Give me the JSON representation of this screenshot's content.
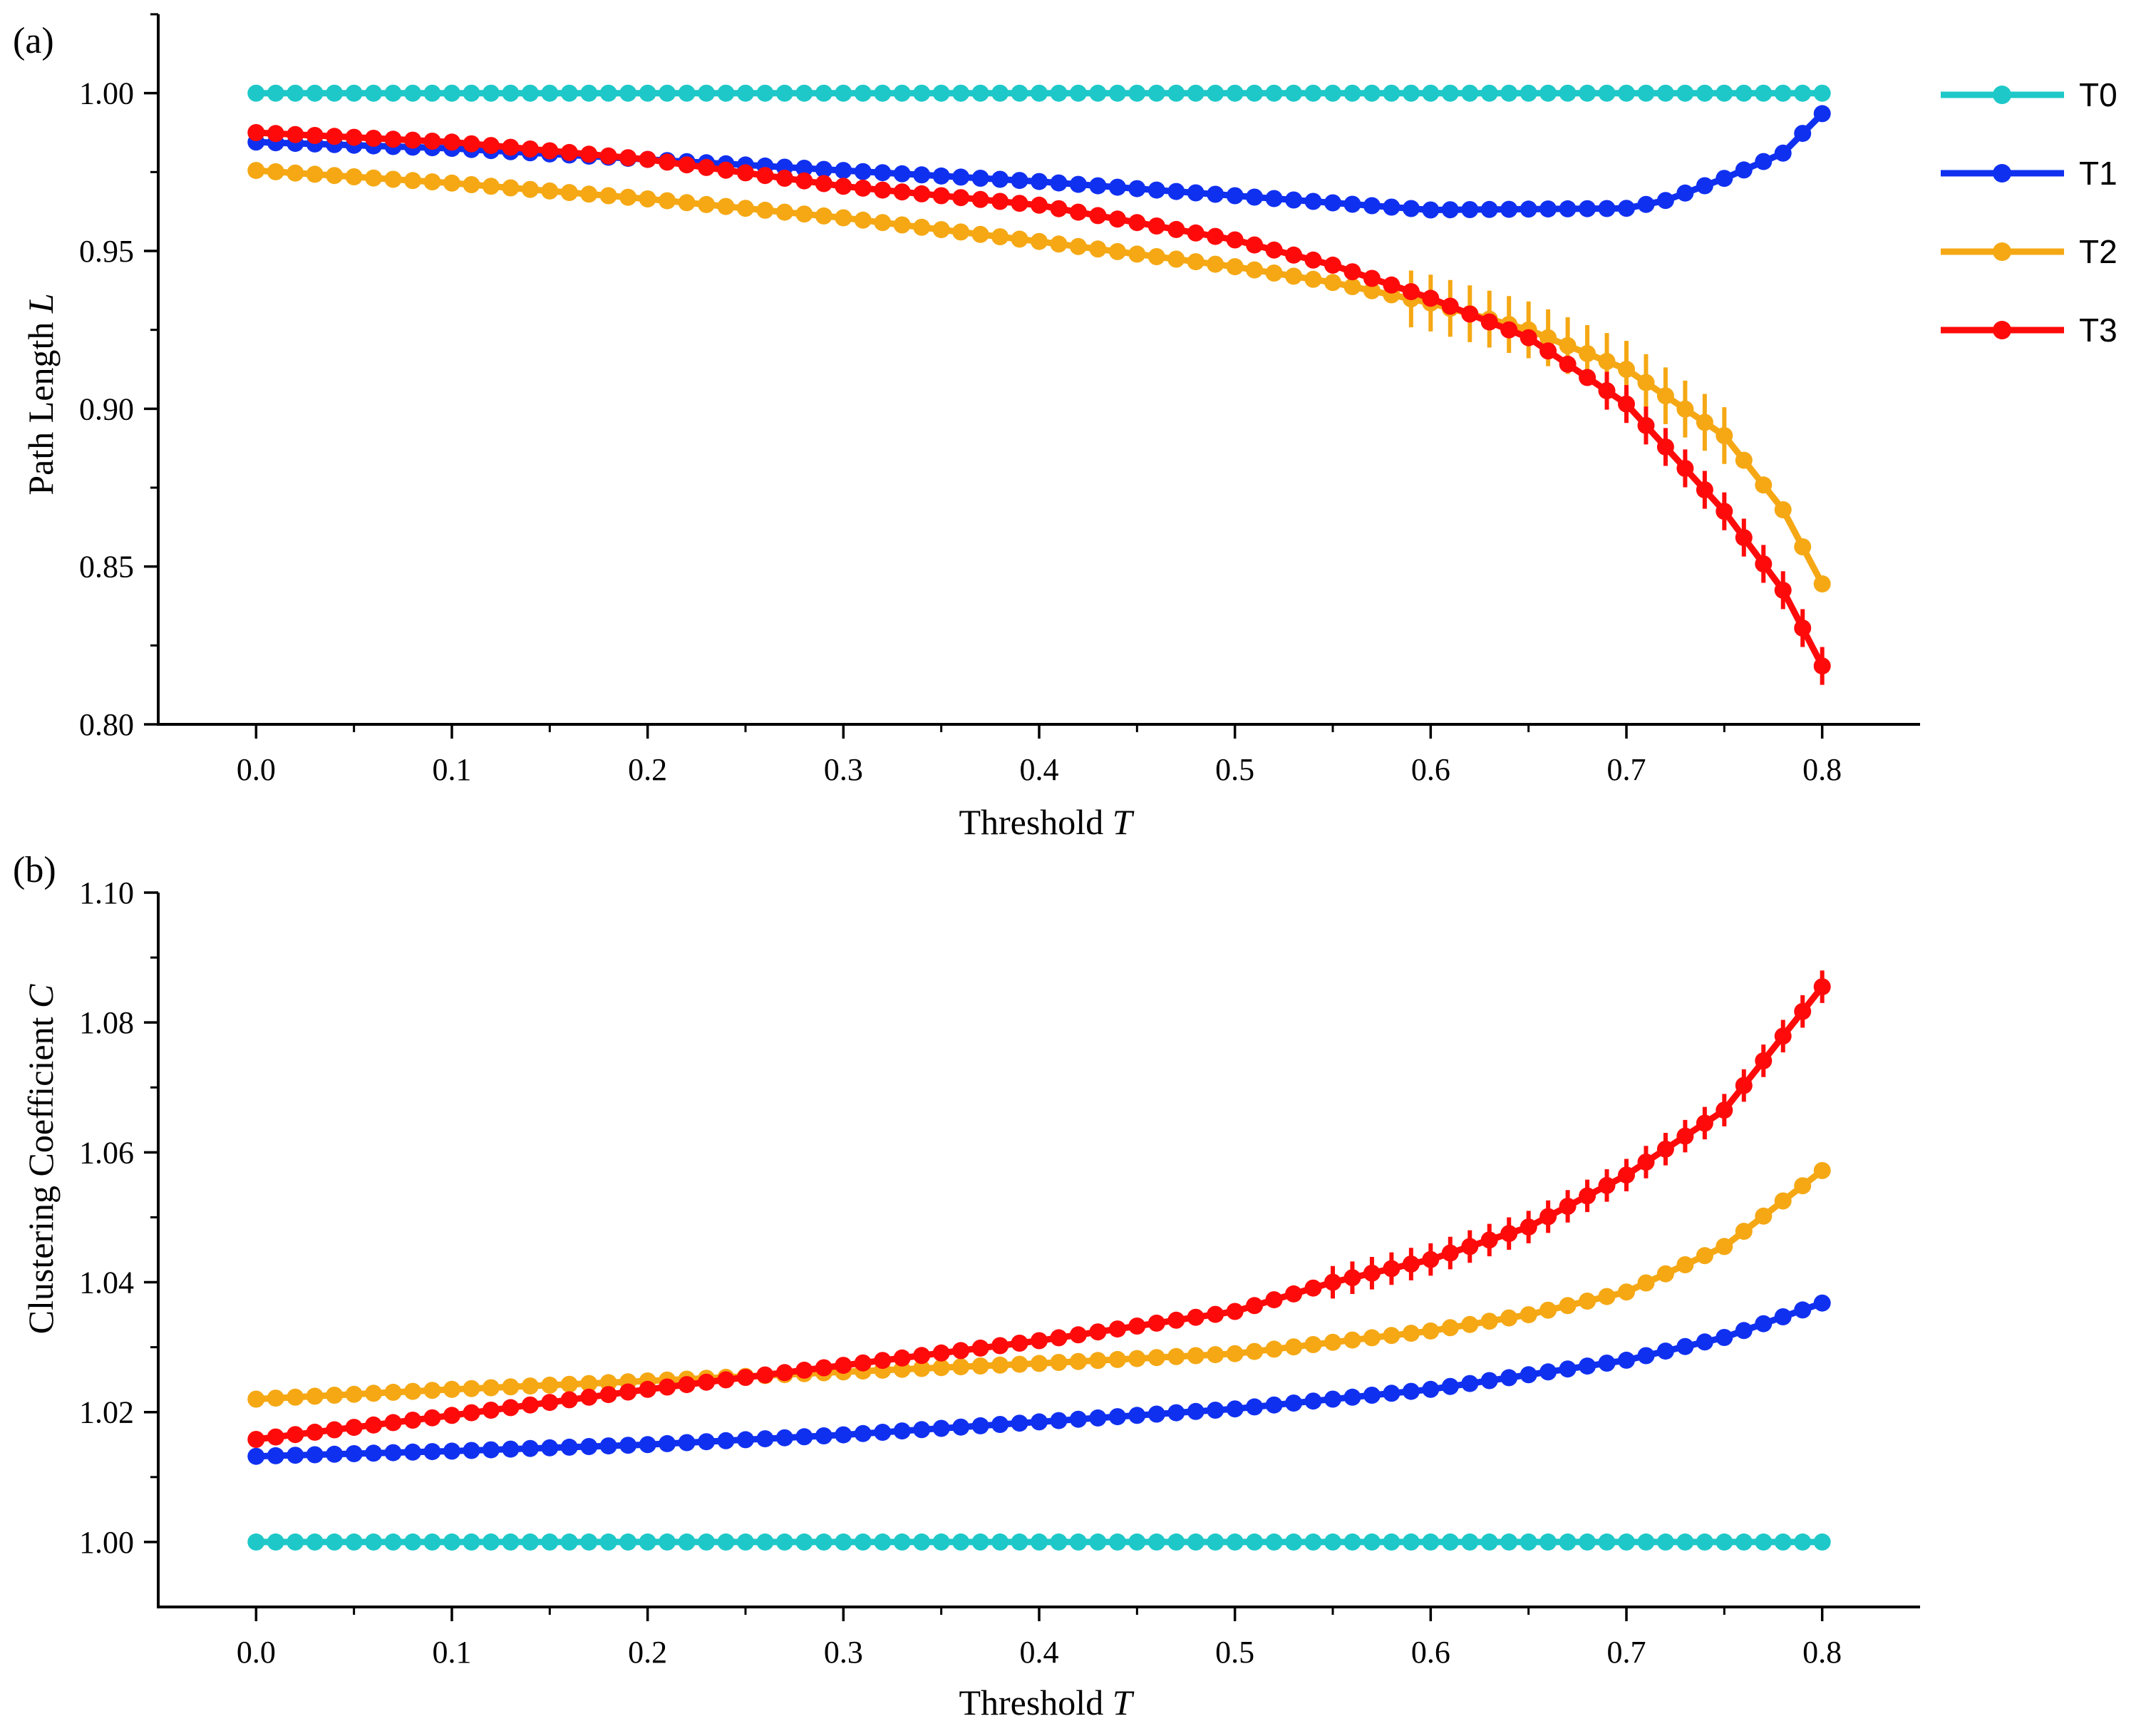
{
  "colors": {
    "T0": "#1ec8c8",
    "T1": "#1030f0",
    "T2": "#f5a814",
    "T3": "#ff0a0a"
  },
  "legend": [
    "T0",
    "T1",
    "T2",
    "T3"
  ],
  "chart_data": [
    {
      "type": "line",
      "panel_label": "(a)",
      "title": "",
      "xlabel": "Threshold",
      "xlabel_var": "T",
      "ylabel": "Path Length",
      "ylabel_var": "L",
      "xlim": [
        -0.05,
        0.85
      ],
      "ylim": [
        0.8,
        1.025
      ],
      "xticks": [
        0.0,
        0.1,
        0.2,
        0.3,
        0.4,
        0.5,
        0.6,
        0.7,
        0.8
      ],
      "xtick_labels": [
        "0.0",
        "0.1",
        "0.2",
        "0.3",
        "0.4",
        "0.5",
        "0.6",
        "0.7",
        "0.8"
      ],
      "yticks": [
        0.8,
        0.85,
        0.9,
        0.95,
        1.0
      ],
      "ytick_labels": [
        "0.80",
        "0.85",
        "0.90",
        "0.95",
        "1.00"
      ],
      "grid": false,
      "legend_position": "right",
      "x": {
        "start": 0.0,
        "stop": 0.8,
        "step": 0.01
      },
      "series": [
        {
          "name": "T0",
          "knots": [
            [
              0.0,
              1.0
            ],
            [
              0.8,
              1.0
            ]
          ]
        },
        {
          "name": "T1",
          "knots": [
            [
              0.0,
              0.9845
            ],
            [
              0.1,
              0.9825
            ],
            [
              0.2,
              0.979
            ],
            [
              0.3,
              0.9755
            ],
            [
              0.4,
              0.972
            ],
            [
              0.5,
              0.9675
            ],
            [
              0.6,
              0.963
            ],
            [
              0.7,
              0.9635
            ],
            [
              0.72,
              0.966
            ],
            [
              0.75,
              0.973
            ],
            [
              0.78,
              0.981
            ],
            [
              0.8,
              0.9935
            ]
          ]
        },
        {
          "name": "T2",
          "knots": [
            [
              0.0,
              0.9755
            ],
            [
              0.1,
              0.9715
            ],
            [
              0.2,
              0.9665
            ],
            [
              0.3,
              0.9605
            ],
            [
              0.4,
              0.953
            ],
            [
              0.5,
              0.945
            ],
            [
              0.55,
              0.94
            ],
            [
              0.6,
              0.9335
            ],
            [
              0.65,
              0.925
            ],
            [
              0.7,
              0.9125
            ],
            [
              0.75,
              0.8915
            ],
            [
              0.78,
              0.868
            ],
            [
              0.8,
              0.8445
            ]
          ]
        },
        {
          "name": "T3",
          "knots": [
            [
              0.0,
              0.9875
            ],
            [
              0.1,
              0.9845
            ],
            [
              0.2,
              0.979
            ],
            [
              0.3,
              0.9705
            ],
            [
              0.4,
              0.9645
            ],
            [
              0.5,
              0.9535
            ],
            [
              0.55,
              0.9455
            ],
            [
              0.6,
              0.935
            ],
            [
              0.65,
              0.9225
            ],
            [
              0.7,
              0.9015
            ],
            [
              0.75,
              0.8675
            ],
            [
              0.78,
              0.8425
            ],
            [
              0.8,
              0.8185
            ]
          ]
        }
      ],
      "error_bands": [
        {
          "series": "T2",
          "from": 0.59,
          "to": 0.75,
          "halfwidth": 0.009
        },
        {
          "series": "T3",
          "from": 0.69,
          "to": 0.8,
          "halfwidth": 0.006
        }
      ]
    },
    {
      "type": "line",
      "panel_label": "(b)",
      "title": "",
      "xlabel": "Threshold",
      "xlabel_var": "T",
      "ylabel": "Clustering Coefficient",
      "ylabel_var": "C",
      "xlim": [
        -0.05,
        0.85
      ],
      "ylim": [
        0.99,
        1.1
      ],
      "xticks": [
        0.0,
        0.1,
        0.2,
        0.3,
        0.4,
        0.5,
        0.6,
        0.7,
        0.8
      ],
      "xtick_labels": [
        "0.0",
        "0.1",
        "0.2",
        "0.3",
        "0.4",
        "0.5",
        "0.6",
        "0.7",
        "0.8"
      ],
      "yticks": [
        1.0,
        1.02,
        1.04,
        1.06,
        1.08,
        1.1
      ],
      "ytick_labels": [
        "1.00",
        "1.02",
        "1.04",
        "1.06",
        "1.08",
        "1.10"
      ],
      "grid": false,
      "legend_position": "none",
      "x": {
        "start": 0.0,
        "stop": 0.8,
        "step": 0.01
      },
      "series": [
        {
          "name": "T0",
          "knots": [
            [
              0.0,
              1.0
            ],
            [
              0.8,
              1.0
            ]
          ]
        },
        {
          "name": "T1",
          "knots": [
            [
              0.0,
              1.0132
            ],
            [
              0.1,
              1.014
            ],
            [
              0.2,
              1.015
            ],
            [
              0.3,
              1.0165
            ],
            [
              0.4,
              1.0185
            ],
            [
              0.5,
              1.0205
            ],
            [
              0.6,
              1.0235
            ],
            [
              0.7,
              1.028
            ],
            [
              0.75,
              1.0315
            ],
            [
              0.8,
              1.0368
            ]
          ]
        },
        {
          "name": "T2",
          "knots": [
            [
              0.0,
              1.022
            ],
            [
              0.1,
              1.0235
            ],
            [
              0.2,
              1.0248
            ],
            [
              0.3,
              1.0262
            ],
            [
              0.4,
              1.0275
            ],
            [
              0.5,
              1.029
            ],
            [
              0.6,
              1.0325
            ],
            [
              0.65,
              1.035
            ],
            [
              0.7,
              1.0385
            ],
            [
              0.75,
              1.0455
            ],
            [
              0.8,
              1.0572
            ]
          ]
        },
        {
          "name": "T3",
          "knots": [
            [
              0.0,
              1.0158
            ],
            [
              0.1,
              1.0195
            ],
            [
              0.2,
              1.0235
            ],
            [
              0.3,
              1.0272
            ],
            [
              0.4,
              1.031
            ],
            [
              0.5,
              1.0355
            ],
            [
              0.55,
              1.04
            ],
            [
              0.6,
              1.0435
            ],
            [
              0.65,
              1.0485
            ],
            [
              0.7,
              1.0565
            ],
            [
              0.75,
              1.0665
            ],
            [
              0.8,
              1.0855
            ]
          ]
        }
      ],
      "error_bands": [
        {
          "series": "T3",
          "from": 0.55,
          "to": 0.8,
          "halfwidth": 0.0025
        }
      ]
    }
  ]
}
